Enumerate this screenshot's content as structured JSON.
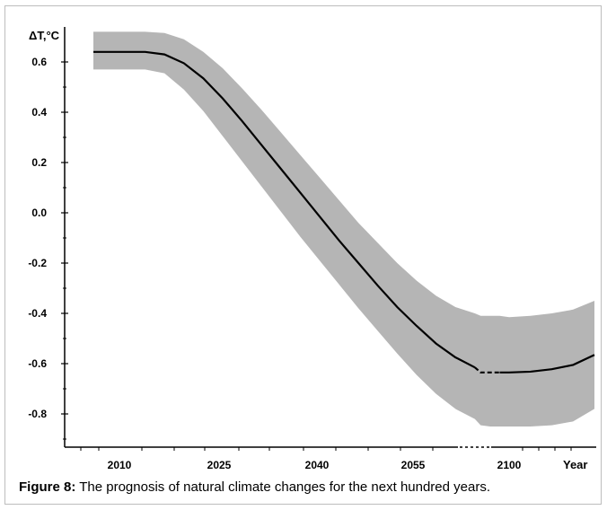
{
  "chart_data": {
    "type": "line",
    "ylabel": "ΔT,°C",
    "xlabel": "Year",
    "ylim": [
      -0.95,
      0.72
    ],
    "y_ticks": [
      0.6,
      0.4,
      0.2,
      0.0,
      -0.2,
      -0.4,
      -0.6,
      -0.8
    ],
    "y_tick_labels": [
      "0.6",
      "0.4",
      "0.2",
      "0.0",
      "-0.2",
      "-0.4",
      "-0.6",
      "-0.8"
    ],
    "x_tick_labels": [
      "2010",
      "2025",
      "2040",
      "2055",
      "2100"
    ],
    "x_axis_break": "between 2055 and 2100",
    "grid": false,
    "series": [
      {
        "x": [
          2005,
          2008,
          2011,
          2013,
          2016,
          2019,
          2022,
          2025,
          2028,
          2031,
          2034,
          2037,
          2040,
          2043,
          2046,
          2049,
          2052,
          2055,
          2058,
          2061,
          2064,
          2070,
          2080,
          2090,
          2100,
          2110,
          2120,
          2130,
          2140
        ],
        "values": [
          0.64,
          0.64,
          0.64,
          0.64,
          0.63,
          0.595,
          0.535,
          0.455,
          0.365,
          0.27,
          0.175,
          0.08,
          -0.015,
          -0.11,
          -0.2,
          -0.29,
          -0.375,
          -0.45,
          -0.52,
          -0.575,
          -0.615,
          -0.635,
          -0.635,
          -0.635,
          -0.635,
          -0.632,
          -0.622,
          -0.605,
          -0.565
        ],
        "upper": [
          0.72,
          0.72,
          0.72,
          0.72,
          0.715,
          0.69,
          0.64,
          0.575,
          0.495,
          0.41,
          0.32,
          0.23,
          0.14,
          0.05,
          -0.04,
          -0.12,
          -0.2,
          -0.27,
          -0.33,
          -0.375,
          -0.4,
          -0.41,
          -0.41,
          -0.41,
          -0.415,
          -0.41,
          -0.4,
          -0.385,
          -0.35
        ],
        "lower": [
          0.57,
          0.57,
          0.57,
          0.57,
          0.555,
          0.49,
          0.405,
          0.305,
          0.205,
          0.105,
          0.005,
          -0.095,
          -0.19,
          -0.285,
          -0.38,
          -0.47,
          -0.56,
          -0.645,
          -0.72,
          -0.78,
          -0.82,
          -0.845,
          -0.85,
          -0.85,
          -0.85,
          -0.85,
          -0.845,
          -0.83,
          -0.78
        ]
      }
    ],
    "dashed_segment_x": [
      2064,
      2090
    ]
  },
  "caption": {
    "label": "Figure 8:",
    "text": " The prognosis of natural climate changes for the next hundred years."
  },
  "colors": {
    "band": "#b5b5b5",
    "line": "#000000"
  }
}
